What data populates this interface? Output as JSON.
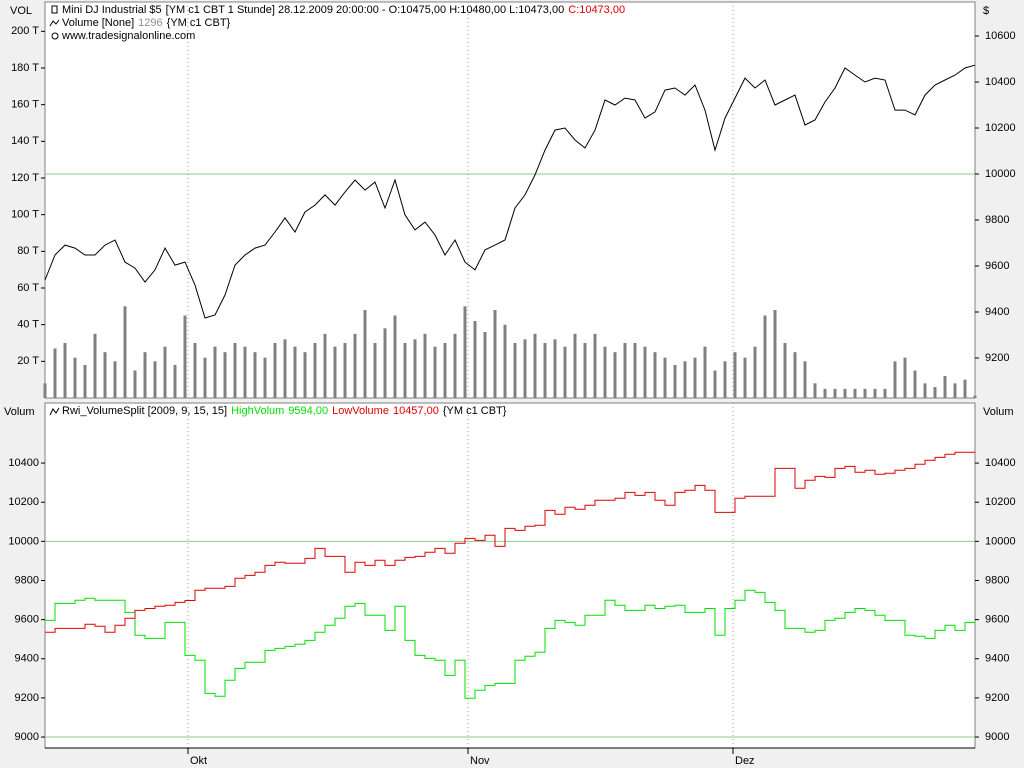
{
  "chart_data": [
    {
      "type": "line",
      "title": "Mini DJ Industrial $5",
      "info": "[YM c1 CBT  1 Stunde] 28.12.2009 20:00:00 - O:10475,00 H:10480,00 L:10473,00",
      "website": "www.tradesignalonline.com",
      "y_label": "$",
      "y2_label": "VOL",
      "y2_position": "left",
      "yticks_sides": [
        "right"
      ],
      "xlim": [
        0,
        93
      ],
      "x": [
        0,
        1,
        2,
        3,
        4,
        5,
        6,
        7,
        8,
        9,
        10,
        11,
        12,
        13,
        14,
        15,
        16,
        17,
        18,
        19,
        20,
        21,
        22,
        23,
        24,
        25,
        26,
        27,
        28,
        29,
        30,
        31,
        32,
        33,
        34,
        35,
        36,
        37,
        38,
        39,
        40,
        41,
        42,
        43,
        44,
        45,
        46,
        47,
        48,
        49,
        50,
        51,
        52,
        53,
        54,
        55,
        56,
        57,
        58,
        59,
        60,
        61,
        62,
        63,
        64,
        65,
        66,
        67,
        68,
        69,
        70,
        71,
        72,
        73,
        74,
        75,
        76,
        77,
        78,
        79,
        80,
        81,
        82,
        83,
        84,
        85,
        86,
        87,
        88,
        89,
        90,
        91,
        92,
        93
      ],
      "ylim": [
        9026,
        10748
      ],
      "yticks": [
        9200,
        9400,
        9600,
        9800,
        10000,
        10200,
        10400,
        10600
      ],
      "y2lim": [
        0,
        216000
      ],
      "y2ticks": [
        {
          "value": 20000,
          "label": "20 T"
        },
        {
          "value": 40000,
          "label": "40 T"
        },
        {
          "value": 60000,
          "label": "60 T"
        },
        {
          "value": 80000,
          "label": "80 T"
        },
        {
          "value": 100000,
          "label": "100 T"
        },
        {
          "value": 120000,
          "label": "120 T"
        },
        {
          "value": 140000,
          "label": "140 T"
        },
        {
          "value": 160000,
          "label": "160 T"
        },
        {
          "value": 180000,
          "label": "180 T"
        },
        {
          "value": 200000,
          "label": "200 T"
        }
      ],
      "hlines": [
        10000
      ],
      "hline_color": "#8fc88f",
      "series": [
        {
          "name": "Mini DJ Industrial $5",
          "type": "line",
          "color": "#000000",
          "last_label": "C:10473,00",
          "last_color": "#e00000",
          "values": [
            9539,
            9648,
            9691,
            9678,
            9648,
            9648,
            9691,
            9713,
            9617,
            9591,
            9530,
            9583,
            9678,
            9604,
            9617,
            9517,
            9374,
            9387,
            9474,
            9604,
            9648,
            9678,
            9691,
            9748,
            9809,
            9748,
            9835,
            9865,
            9909,
            9865,
            9922,
            9974,
            9930,
            9965,
            9852,
            9974,
            9822,
            9757,
            9791,
            9735,
            9648,
            9713,
            9617,
            9583,
            9670,
            9691,
            9713,
            9852,
            9909,
            9996,
            10104,
            10191,
            10200,
            10148,
            10113,
            10191,
            10322,
            10300,
            10330,
            10322,
            10243,
            10270,
            10365,
            10374,
            10343,
            10387,
            10278,
            10104,
            10243,
            10330,
            10417,
            10374,
            10409,
            10300,
            10322,
            10343,
            10213,
            10235,
            10313,
            10374,
            10461,
            10430,
            10400,
            10417,
            10409,
            10278,
            10278,
            10257,
            10343,
            10387,
            10409,
            10430,
            10461,
            10473
          ]
        },
        {
          "name": "Volume [None]",
          "type": "bar",
          "axis": "y2",
          "color": "#808080",
          "last_label": "1296",
          "last_color": "#909090",
          "info": "{YM c1 CBT}",
          "values": [
            8000,
            27000,
            30000,
            22000,
            18000,
            35000,
            25000,
            20000,
            50000,
            15000,
            25000,
            20000,
            28000,
            18000,
            45000,
            30000,
            22000,
            28000,
            25000,
            30000,
            28000,
            25000,
            22000,
            30000,
            32000,
            28000,
            25000,
            30000,
            35000,
            28000,
            30000,
            35000,
            48000,
            30000,
            38000,
            45000,
            30000,
            32000,
            35000,
            28000,
            30000,
            35000,
            50000,
            42000,
            36000,
            48000,
            40000,
            30000,
            32000,
            35000,
            30000,
            32000,
            28000,
            35000,
            30000,
            35000,
            28000,
            25000,
            30000,
            30000,
            28000,
            25000,
            22000,
            18000,
            20000,
            22000,
            28000,
            15000,
            20000,
            25000,
            22000,
            28000,
            45000,
            48000,
            30000,
            25000,
            20000,
            8000,
            5000,
            5000,
            5000,
            5000,
            5000,
            5000,
            5000,
            20000,
            22000,
            15000,
            8000,
            6000,
            12000,
            8000,
            10000,
            1296
          ]
        }
      ]
    },
    {
      "type": "line",
      "title": "Rwi_VolumeSplit [2009, 9, 15, 15]",
      "info": "{YM c1 CBT}",
      "y_label": "Volum",
      "yticks_sides": [
        "left",
        "right"
      ],
      "xlim": [
        0,
        93
      ],
      "x": [
        0,
        1,
        2,
        3,
        4,
        5,
        6,
        7,
        8,
        9,
        10,
        11,
        12,
        13,
        14,
        15,
        16,
        17,
        18,
        19,
        20,
        21,
        22,
        23,
        24,
        25,
        26,
        27,
        28,
        29,
        30,
        31,
        32,
        33,
        34,
        35,
        36,
        37,
        38,
        39,
        40,
        41,
        42,
        43,
        44,
        45,
        46,
        47,
        48,
        49,
        50,
        51,
        52,
        53,
        54,
        55,
        56,
        57,
        58,
        59,
        60,
        61,
        62,
        63,
        64,
        65,
        66,
        67,
        68,
        69,
        70,
        71,
        72,
        73,
        74,
        75,
        76,
        77,
        78,
        79,
        80,
        81,
        82,
        83,
        84,
        85,
        86,
        87,
        88,
        89,
        90,
        91,
        92,
        93
      ],
      "xticks": [
        {
          "value": 14.3,
          "label": "Okt"
        },
        {
          "value": 42.3,
          "label": "Nov"
        },
        {
          "value": 68.8,
          "label": "Dez"
        }
      ],
      "ylim": [
        8944,
        10707
      ],
      "yticks": [
        9000,
        9200,
        9400,
        9600,
        9800,
        10000,
        10200,
        10400
      ],
      "hlines": [
        9000,
        10000
      ],
      "hline_color": "#8fc88f",
      "series": [
        {
          "name": "HighVolum",
          "type": "step",
          "color": "#00e000",
          "last_label": "9594,00",
          "last_color": "#00e000",
          "values": [
            9596,
            9683,
            9683,
            9699,
            9709,
            9699,
            9699,
            9699,
            9637,
            9520,
            9504,
            9504,
            9586,
            9586,
            9417,
            9392,
            9223,
            9208,
            9290,
            9351,
            9382,
            9382,
            9443,
            9453,
            9463,
            9474,
            9494,
            9535,
            9571,
            9607,
            9668,
            9683,
            9622,
            9622,
            9545,
            9668,
            9494,
            9417,
            9402,
            9392,
            9315,
            9392,
            9198,
            9239,
            9264,
            9274,
            9274,
            9392,
            9413,
            9433,
            9555,
            9596,
            9586,
            9571,
            9622,
            9622,
            9699,
            9673,
            9647,
            9647,
            9673,
            9657,
            9668,
            9673,
            9637,
            9637,
            9657,
            9520,
            9657,
            9699,
            9750,
            9739,
            9688,
            9647,
            9555,
            9555,
            9535,
            9545,
            9596,
            9607,
            9637,
            9657,
            9647,
            9622,
            9596,
            9596,
            9520,
            9515,
            9504,
            9545,
            9571,
            9545,
            9586,
            9594
          ]
        },
        {
          "name": "LowVolume",
          "type": "step",
          "color": "#e00000",
          "last_label": "10457,00",
          "last_color": "#e00000",
          "values": [
            9535,
            9555,
            9555,
            9555,
            9576,
            9566,
            9535,
            9571,
            9607,
            9647,
            9657,
            9668,
            9673,
            9688,
            9698,
            9750,
            9760,
            9760,
            9770,
            9811,
            9826,
            9842,
            9877,
            9893,
            9888,
            9888,
            9913,
            9964,
            9923,
            9923,
            9842,
            9893,
            9877,
            9903,
            9877,
            9903,
            9918,
            9923,
            9944,
            9964,
            9939,
            9990,
            10015,
            10005,
            10031,
            9974,
            10066,
            10056,
            10077,
            10082,
            10158,
            10138,
            10174,
            10164,
            10184,
            10210,
            10210,
            10220,
            10250,
            10235,
            10250,
            10210,
            10184,
            10250,
            10261,
            10286,
            10261,
            10148,
            10148,
            10220,
            10230,
            10230,
            10230,
            10373,
            10373,
            10271,
            10312,
            10332,
            10327,
            10373,
            10383,
            10353,
            10363,
            10343,
            10348,
            10363,
            10373,
            10394,
            10414,
            10429,
            10445,
            10455,
            10455,
            10457
          ]
        }
      ]
    }
  ]
}
